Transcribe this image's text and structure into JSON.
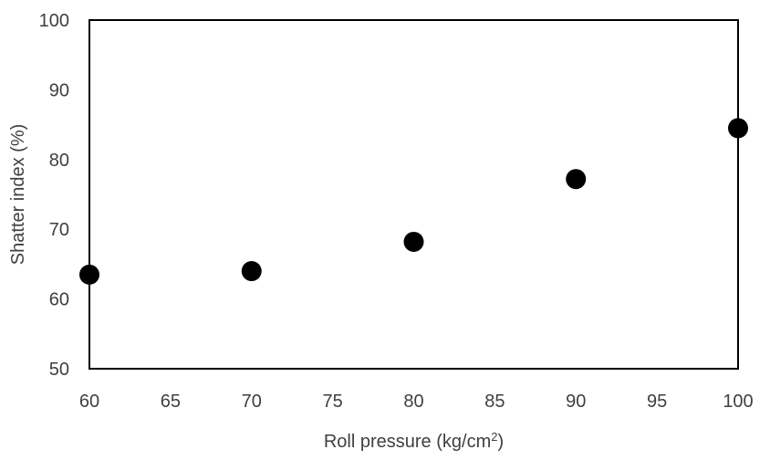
{
  "chart_data": {
    "type": "scatter",
    "xlabel": {
      "main": "Roll pressure (kg/cm",
      "sup": "2",
      "tail": ")"
    },
    "ylabel": "Shatter index (%)",
    "xlim": [
      60,
      100
    ],
    "ylim": [
      50,
      100
    ],
    "xticks": [
      "60",
      "65",
      "70",
      "75",
      "80",
      "85",
      "90",
      "95",
      "100"
    ],
    "yticks": [
      "50",
      "60",
      "70",
      "80",
      "90",
      "100"
    ],
    "grid": false,
    "legend": "none",
    "marker_color": "#000000",
    "points": [
      {
        "x": 60,
        "y": 63.5
      },
      {
        "x": 70,
        "y": 64.0
      },
      {
        "x": 80,
        "y": 68.2
      },
      {
        "x": 90,
        "y": 77.2
      },
      {
        "x": 100,
        "y": 84.5
      }
    ]
  }
}
